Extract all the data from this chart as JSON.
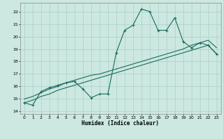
{
  "title": "",
  "xlabel": "Humidex (Indice chaleur)",
  "xlim": [
    -0.5,
    23.5
  ],
  "ylim": [
    13.8,
    22.7
  ],
  "yticks": [
    14,
    15,
    16,
    17,
    18,
    19,
    20,
    21,
    22
  ],
  "xticks": [
    0,
    1,
    2,
    3,
    4,
    5,
    6,
    7,
    8,
    9,
    10,
    11,
    12,
    13,
    14,
    15,
    16,
    17,
    18,
    19,
    20,
    21,
    22,
    23
  ],
  "bg_color": "#cce8e0",
  "grid_color": "#aacfc8",
  "line_color": "#1a6b5e",
  "line1_x": [
    0,
    1,
    2,
    3,
    4,
    5,
    6,
    7,
    8,
    9,
    10,
    11,
    12,
    13,
    14,
    15,
    16,
    17,
    18,
    19,
    20,
    21,
    22,
    23
  ],
  "line1_y": [
    14.7,
    14.5,
    15.6,
    15.9,
    16.1,
    16.3,
    16.4,
    15.8,
    15.1,
    15.4,
    15.4,
    18.7,
    20.5,
    20.9,
    22.2,
    22.0,
    20.5,
    20.5,
    21.5,
    19.6,
    19.1,
    19.5,
    19.3,
    18.6
  ],
  "line2_x": [
    0,
    1,
    2,
    3,
    4,
    5,
    6,
    7,
    8,
    9,
    10,
    11,
    12,
    13,
    14,
    15,
    16,
    17,
    18,
    19,
    20,
    21,
    22,
    23
  ],
  "line2_y": [
    14.7,
    14.9,
    15.2,
    15.4,
    15.7,
    15.9,
    16.1,
    16.3,
    16.5,
    16.7,
    16.9,
    17.1,
    17.3,
    17.5,
    17.7,
    17.9,
    18.1,
    18.3,
    18.5,
    18.7,
    18.9,
    19.1,
    19.3,
    18.6
  ],
  "line3_x": [
    0,
    1,
    2,
    3,
    4,
    5,
    6,
    7,
    8,
    9,
    10,
    11,
    12,
    13,
    14,
    15,
    16,
    17,
    18,
    19,
    20,
    21,
    22,
    23
  ],
  "line3_y": [
    15.0,
    15.2,
    15.5,
    15.8,
    16.0,
    16.3,
    16.5,
    16.7,
    16.9,
    17.0,
    17.2,
    17.4,
    17.6,
    17.8,
    18.0,
    18.2,
    18.4,
    18.6,
    18.8,
    19.0,
    19.3,
    19.5,
    19.7,
    19.1
  ]
}
